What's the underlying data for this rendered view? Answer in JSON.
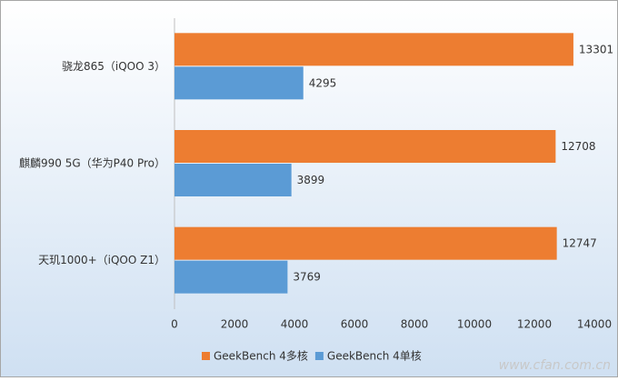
{
  "chart_data": {
    "type": "hbar",
    "categories": [
      "骁龙865（iQOO 3）",
      "麒麟990 5G（华为P40 Pro）",
      "天玑1000+（iQOO Z1）"
    ],
    "series": [
      {
        "name": "GeekBench 4多核",
        "color": "#ED7D31",
        "values": [
          13301,
          12708,
          12747
        ]
      },
      {
        "name": "GeekBench 4单核",
        "color": "#5B9BD5",
        "values": [
          4295,
          3899,
          3769
        ]
      }
    ],
    "xlim": [
      0,
      14000
    ],
    "xticks": [
      0,
      2000,
      4000,
      6000,
      8000,
      10000,
      12000,
      14000
    ],
    "grid": false,
    "legend": "bottom",
    "watermark": "www.cfan.com.cn"
  }
}
